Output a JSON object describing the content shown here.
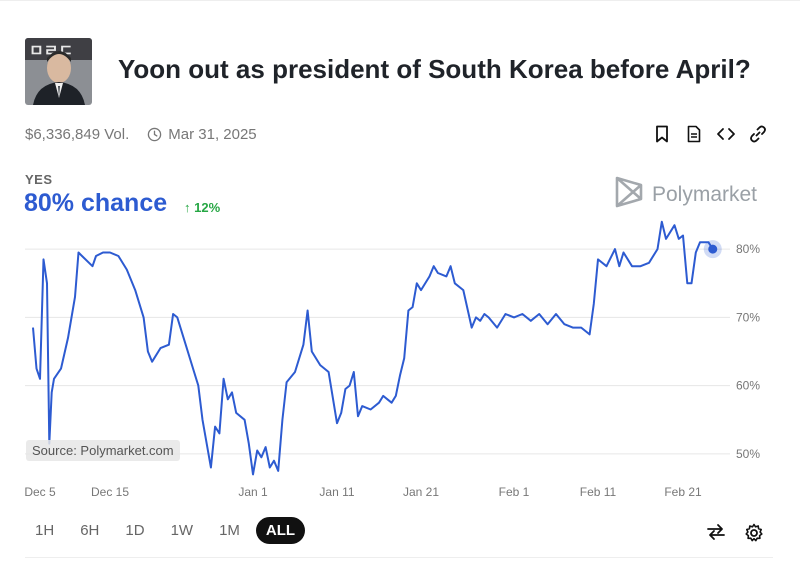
{
  "market": {
    "title": "Yoon out as president of South Korea before April?",
    "volume": "$6,336,849 Vol.",
    "end_date": "Mar 31, 2025",
    "outcome": "YES",
    "chance": "80% chance",
    "delta": "↑ 12%",
    "brand": "Polymarket",
    "source": "Source: Polymarket.com"
  },
  "icons": {
    "bookmark": "bookmark-icon",
    "document": "document-icon",
    "embed": "code-icon",
    "link": "link-icon",
    "clock": "clock-icon",
    "swap": "swap-icon",
    "settings": "gear-icon"
  },
  "time_ranges": [
    "1H",
    "6H",
    "1D",
    "1W",
    "1M",
    "ALL"
  ],
  "active_range": "ALL",
  "colors": {
    "line": "#2d5bd1",
    "delta": "#27a745",
    "grid": "#e6e6e6"
  },
  "chart_data": {
    "type": "line",
    "title": "",
    "xlabel": "",
    "ylabel": "",
    "x_ticks": [
      "Dec 5",
      "Dec 15",
      "Jan 1",
      "Jan 11",
      "Jan 21",
      "Feb 1",
      "Feb 11",
      "Feb 21"
    ],
    "y_ticks": [
      "50%",
      "60%",
      "70%",
      "80%"
    ],
    "ylim": [
      45,
      85
    ],
    "grid": true,
    "series": [
      {
        "values": [
          [
            "Dec 4",
            68.5
          ],
          [
            "Dec 4",
            62.5
          ],
          [
            "Dec 5",
            61
          ],
          [
            "Dec 5",
            78.5
          ],
          [
            "Dec 6",
            75
          ],
          [
            "Dec 6",
            51.5
          ],
          [
            "Dec 6",
            59
          ],
          [
            "Dec 7",
            61
          ],
          [
            "Dec 8",
            62.5
          ],
          [
            "Dec 9",
            67
          ],
          [
            "Dec 10",
            73
          ],
          [
            "Dec 10",
            79.5
          ],
          [
            "Dec 11",
            79
          ],
          [
            "Dec 12",
            78
          ],
          [
            "Dec 12",
            77.5
          ],
          [
            "Dec 13",
            79
          ],
          [
            "Dec 14",
            79.5
          ],
          [
            "Dec 15",
            79.5
          ],
          [
            "Dec 16",
            79
          ],
          [
            "Dec 17",
            77
          ],
          [
            "Dec 18",
            74
          ],
          [
            "Dec 19",
            70
          ],
          [
            "Dec 19",
            65
          ],
          [
            "Dec 20",
            63.5
          ],
          [
            "Dec 21",
            65.5
          ],
          [
            "Dec 22",
            66
          ],
          [
            "Dec 22",
            70.5
          ],
          [
            "Dec 23",
            70
          ],
          [
            "Dec 24",
            66
          ],
          [
            "Dec 25",
            62
          ],
          [
            "Dec 25",
            60
          ],
          [
            "Dec 26",
            55
          ],
          [
            "Dec 27",
            48
          ],
          [
            "Dec 27",
            54
          ],
          [
            "Dec 28",
            53
          ],
          [
            "Dec 28",
            61
          ],
          [
            "Dec 29",
            58
          ],
          [
            "Dec 29",
            59
          ],
          [
            "Dec 30",
            56
          ],
          [
            "Dec 31",
            55
          ],
          [
            "Dec 31",
            51.5
          ],
          [
            "Jan 1",
            47
          ],
          [
            "Jan 1",
            50.5
          ],
          [
            "Jan 2",
            49.5
          ],
          [
            "Jan 2",
            51
          ],
          [
            "Jan 3",
            48
          ],
          [
            "Jan 3",
            49
          ],
          [
            "Jan 4",
            47.5
          ],
          [
            "Jan 4",
            55
          ],
          [
            "Jan 5",
            60.5
          ],
          [
            "Jan 6",
            62
          ],
          [
            "Jan 7",
            66
          ],
          [
            "Jan 7",
            71
          ],
          [
            "Jan 8",
            65
          ],
          [
            "Jan 9",
            63
          ],
          [
            "Jan 10",
            62
          ],
          [
            "Jan 11",
            54.5
          ],
          [
            "Jan 11",
            56
          ],
          [
            "Jan 12",
            59.5
          ],
          [
            "Jan 12",
            60
          ],
          [
            "Jan 13",
            62
          ],
          [
            "Jan 13",
            55.5
          ],
          [
            "Jan 14",
            57
          ],
          [
            "Jan 15",
            56.5
          ],
          [
            "Jan 16",
            57.5
          ],
          [
            "Jan 16",
            58.5
          ],
          [
            "Jan 17",
            58
          ],
          [
            "Jan 17",
            57.5
          ],
          [
            "Jan 18",
            58.5
          ],
          [
            "Jan 18",
            61.5
          ],
          [
            "Jan 19",
            64
          ],
          [
            "Jan 19",
            71
          ],
          [
            "Jan 20",
            71.5
          ],
          [
            "Jan 20",
            75
          ],
          [
            "Jan 21",
            74
          ],
          [
            "Jan 22",
            76
          ],
          [
            "Jan 22",
            77.5
          ],
          [
            "Jan 23",
            76.5
          ],
          [
            "Jan 24",
            76
          ],
          [
            "Jan 24",
            77.5
          ],
          [
            "Jan 25",
            75
          ],
          [
            "Jan 26",
            74
          ],
          [
            "Jan 27",
            68.5
          ],
          [
            "Jan 27",
            70
          ],
          [
            "Jan 28",
            69.5
          ],
          [
            "Jan 28",
            70.5
          ],
          [
            "Jan 29",
            70
          ],
          [
            "Jan 30",
            68.5
          ],
          [
            "Jan 31",
            70.5
          ],
          [
            "Feb 1",
            70
          ],
          [
            "Feb 2",
            70.5
          ],
          [
            "Feb 3",
            69.5
          ],
          [
            "Feb 4",
            70.5
          ],
          [
            "Feb 5",
            69
          ],
          [
            "Feb 6",
            70.5
          ],
          [
            "Feb 7",
            69
          ],
          [
            "Feb 8",
            68.5
          ],
          [
            "Feb 9",
            68.5
          ],
          [
            "Feb 10",
            67.5
          ],
          [
            "Feb 10",
            72
          ],
          [
            "Feb 11",
            78.5
          ],
          [
            "Feb 12",
            77.5
          ],
          [
            "Feb 13",
            80
          ],
          [
            "Feb 13",
            77.5
          ],
          [
            "Feb 14",
            79.5
          ],
          [
            "Feb 15",
            77.5
          ],
          [
            "Feb 16",
            77.5
          ],
          [
            "Feb 17",
            78
          ],
          [
            "Feb 18",
            80
          ],
          [
            "Feb 18",
            84
          ],
          [
            "Feb 19",
            81.5
          ],
          [
            "Feb 20",
            83.5
          ],
          [
            "Feb 20",
            81.5
          ],
          [
            "Feb 21",
            82
          ],
          [
            "Feb 21",
            75
          ],
          [
            "Feb 22",
            75
          ],
          [
            "Feb 22",
            79.5
          ],
          [
            "Feb 23",
            81
          ],
          [
            "Feb 24",
            81
          ],
          [
            "Feb 24",
            80
          ]
        ]
      }
    ]
  }
}
